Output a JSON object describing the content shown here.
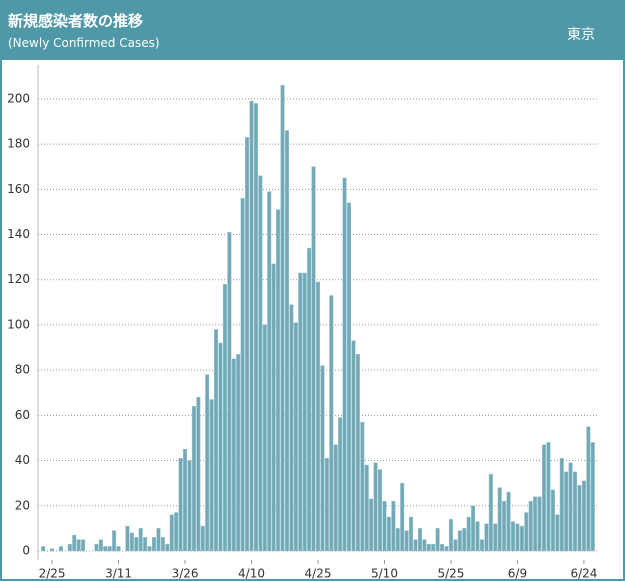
{
  "chart_data": {
    "type": "bar",
    "title": "新規感染者数の推移",
    "subtitle": "(Newly Confirmed Cases)",
    "region": "東京",
    "categories": [
      null,
      null,
      "2/25",
      null,
      null,
      null,
      null,
      null,
      null,
      null,
      null,
      null,
      null,
      null,
      null,
      null,
      null,
      "3/11",
      null,
      null,
      null,
      null,
      null,
      null,
      null,
      null,
      null,
      null,
      null,
      null,
      null,
      null,
      "3/26",
      null,
      null,
      null,
      null,
      null,
      null,
      null,
      null,
      null,
      null,
      null,
      null,
      null,
      null,
      "4/10",
      null,
      null,
      null,
      null,
      null,
      null,
      null,
      null,
      null,
      null,
      null,
      null,
      null,
      null,
      "4/25",
      null,
      null,
      null,
      null,
      null,
      null,
      null,
      null,
      null,
      null,
      null,
      null,
      null,
      null,
      "5/10",
      null,
      null,
      null,
      null,
      null,
      null,
      null,
      null,
      null,
      null,
      null,
      null,
      null,
      null,
      "5/25",
      null,
      null,
      null,
      null,
      null,
      null,
      null,
      null,
      null,
      null,
      null,
      null,
      null,
      null,
      "6/9",
      null,
      null,
      null,
      null,
      null,
      null,
      null,
      null,
      null,
      null,
      null,
      null,
      null,
      null,
      "6/24",
      null,
      null
    ],
    "values": [
      2,
      0,
      1,
      0,
      2,
      0,
      3,
      7,
      5,
      5,
      0,
      0,
      3,
      5,
      2,
      2,
      9,
      2,
      0,
      11,
      8,
      6,
      10,
      6,
      2,
      6,
      10,
      6,
      3,
      16,
      17,
      41,
      45,
      40,
      64,
      68,
      11,
      78,
      67,
      98,
      92,
      118,
      141,
      85,
      87,
      156,
      183,
      199,
      198,
      166,
      100,
      159,
      127,
      151,
      206,
      186,
      109,
      101,
      123,
      123,
      134,
      170,
      119,
      82,
      41,
      113,
      47,
      59,
      165,
      154,
      93,
      87,
      57,
      38,
      23,
      39,
      36,
      22,
      15,
      22,
      10,
      30,
      9,
      15,
      5,
      10,
      5,
      3,
      3,
      10,
      3,
      2,
      14,
      5,
      9,
      10,
      15,
      20,
      13,
      5,
      12,
      34,
      12,
      28,
      22,
      26,
      13,
      12,
      11,
      17,
      22,
      24,
      24,
      47,
      48,
      27,
      16,
      41,
      35,
      39,
      35,
      29,
      31,
      55,
      48
    ],
    "color": "#72a9b7",
    "ylim": [
      -4,
      215
    ],
    "yticks": [
      0,
      20,
      40,
      60,
      80,
      100,
      120,
      140,
      160,
      180,
      200
    ],
    "grid": true
  }
}
